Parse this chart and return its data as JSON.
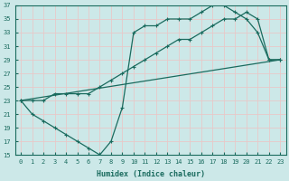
{
  "xlabel": "Humidex (Indice chaleur)",
  "bg_color": "#cce8e8",
  "grid_color": "#e8c8c8",
  "line_color": "#1a6b5e",
  "xlim": [
    -0.5,
    23.5
  ],
  "ylim": [
    15,
    37
  ],
  "xticks": [
    0,
    1,
    2,
    3,
    4,
    5,
    6,
    7,
    8,
    9,
    10,
    11,
    12,
    13,
    14,
    15,
    16,
    17,
    18,
    19,
    20,
    21,
    22,
    23
  ],
  "yticks": [
    15,
    17,
    19,
    21,
    23,
    25,
    27,
    29,
    31,
    33,
    35,
    37
  ],
  "curve1_x": [
    0,
    1,
    2,
    3,
    4,
    5,
    6,
    7,
    8,
    9,
    10,
    11,
    12,
    13,
    14,
    15,
    16,
    17,
    18,
    19,
    20,
    21,
    22,
    23
  ],
  "curve1_y": [
    23,
    21,
    20,
    19,
    18,
    17,
    16,
    15,
    17,
    22,
    33,
    34,
    34,
    35,
    35,
    35,
    36,
    37,
    37,
    36,
    35,
    33,
    29,
    29
  ],
  "curve2_x": [
    0,
    1,
    2,
    3,
    4,
    5,
    6,
    7,
    8,
    9,
    10,
    11,
    12,
    13,
    14,
    15,
    16,
    17,
    18,
    19,
    20,
    21,
    22,
    23
  ],
  "curve2_y": [
    23,
    23,
    23,
    24,
    24,
    24,
    24,
    25,
    26,
    27,
    28,
    29,
    30,
    31,
    32,
    32,
    33,
    34,
    35,
    35,
    36,
    35,
    29,
    29
  ],
  "curve3_x": [
    0,
    23
  ],
  "curve3_y": [
    23,
    29
  ]
}
